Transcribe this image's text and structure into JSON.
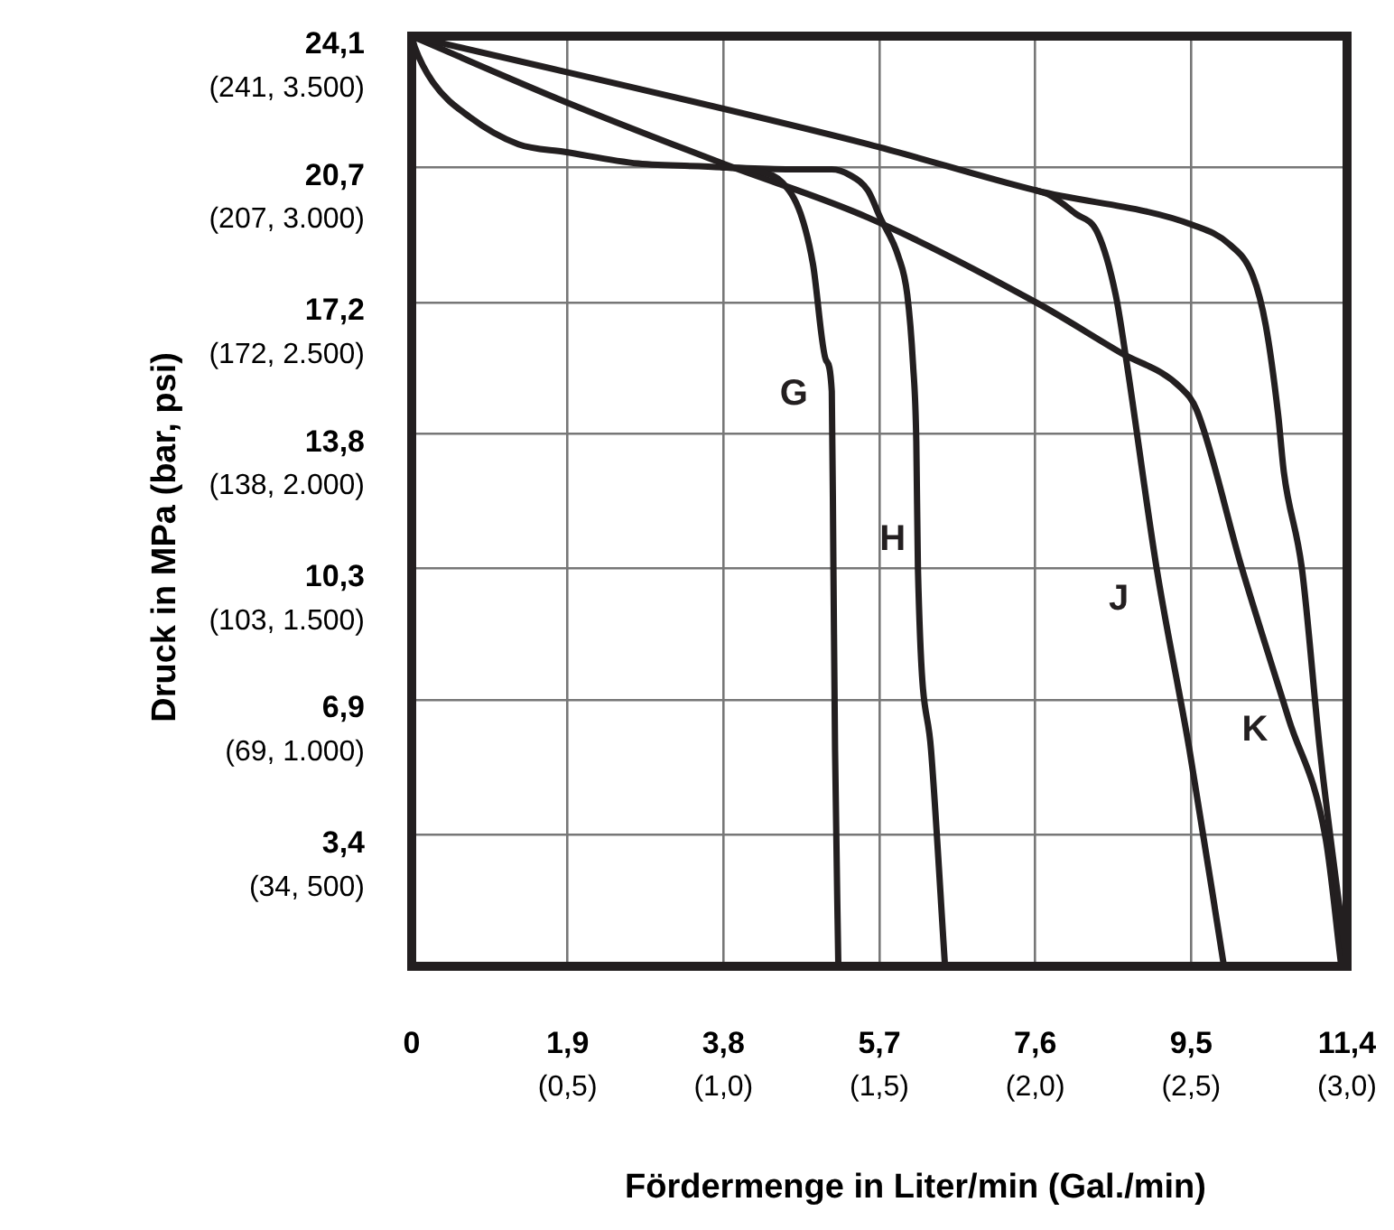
{
  "chart_data": {
    "type": "line",
    "xlabel": "Fördermenge in Liter/min (Gal./min)",
    "ylabel": "Druck in MPa (bar, psi)",
    "xlim": [
      0,
      11.4
    ],
    "ylim": [
      0,
      24.1
    ],
    "xticks": [
      0,
      {
        "value": 1.9,
        "label": "1,9"
      },
      {
        "value": 3.8,
        "label": "3,8"
      },
      {
        "value": 5.7,
        "label": "5,7"
      },
      {
        "value": 7.6,
        "label": "7,6"
      },
      {
        "value": 9.5,
        "label": "9,5"
      },
      {
        "value": 11.4,
        "label": "11,4"
      }
    ],
    "x2lim": [
      0,
      3.0
    ],
    "x2ticks": [
      {
        "value": 0.5,
        "label": "(0,5)"
      },
      {
        "value": 1.0,
        "label": "(1,0)"
      },
      {
        "value": 1.5,
        "label": "(1,5)"
      },
      {
        "value": 2.0,
        "label": "(2,0)"
      },
      {
        "value": 2.5,
        "label": "(2,5)"
      },
      {
        "value": 3.0,
        "label": "(3,0)"
      }
    ],
    "yticks": [
      {
        "value": 3.4,
        "label": "3,4"
      },
      {
        "value": 6.9,
        "label": "6,9"
      },
      {
        "value": 10.3,
        "label": "10,3"
      },
      {
        "value": 13.8,
        "label": "13,8"
      },
      {
        "value": 17.2,
        "label": "17,2"
      },
      {
        "value": 20.7,
        "label": "20,7"
      },
      {
        "value": 24.1,
        "label": "24,1"
      }
    ],
    "annotations": [
      "(34, 500)",
      "(69, 1.000)",
      "(103, 1.500)",
      "(138, 2.000)",
      "(172, 2.500)",
      "(207, 3.000)",
      "(241, 3.500)"
    ],
    "grid": true,
    "legend": false,
    "marker": "none",
    "line_style": "solid",
    "series": [
      {
        "name": "G",
        "color": "#231f20",
        "x": [
          0,
          0.04,
          0.26,
          0.71,
          1.3,
          1.87,
          2.76,
          3.79,
          4.23,
          4.52,
          4.74,
          4.89,
          5.05,
          5.12,
          5.14,
          5.16,
          5.2
        ],
        "values": [
          24.1,
          23.8,
          22.9,
          22,
          21.3,
          21.1,
          20.8,
          20.7,
          20.6,
          20.3,
          19.5,
          18.2,
          15.7,
          14.9,
          10.3,
          5.6,
          0
        ]
      },
      {
        "name": "H",
        "color": "#231f20",
        "x": [
          3.79,
          4.67,
          5.12,
          5.34,
          5.56,
          5.71,
          5.93,
          6.04,
          6.11,
          6.15,
          6.17,
          6.33,
          6.5
        ],
        "values": [
          20.7,
          20.65,
          20.65,
          20.5,
          20.1,
          19.4,
          18.4,
          17.4,
          15.6,
          13.6,
          10.3,
          5.6,
          0
        ]
      },
      {
        "name": "J",
        "color": "#231f20",
        "x": [
          7.61,
          7.76,
          8.09,
          8.36,
          8.58,
          8.71,
          9.08,
          9.48,
          9.9
        ],
        "values": [
          20.1,
          20,
          19.5,
          19,
          17.4,
          15.7,
          10.3,
          5.6,
          0
        ]
      },
      {
        "name": "K",
        "color": "#231f20",
        "x": [
          0,
          5.56,
          7.61,
          9.53,
          9.97,
          10.25,
          10.41,
          10.56,
          10.63,
          10.85,
          11.07,
          11.4
        ],
        "values": [
          24.1,
          21.3,
          20.1,
          19.2,
          18.7,
          17.9,
          16.6,
          14.3,
          12.8,
          10.3,
          5.6,
          0
        ]
      },
      {
        "color": "#231f20",
        "x": [
          0,
          1.87,
          3.79,
          5.56,
          7.61,
          8.64,
          9.37,
          9.57,
          10.12,
          10.69,
          11.14,
          11.33
        ],
        "values": [
          24.1,
          22.4,
          20.8,
          19.4,
          17.2,
          15.9,
          15,
          14.4,
          10.3,
          6.4,
          3.3,
          0
        ]
      }
    ]
  }
}
